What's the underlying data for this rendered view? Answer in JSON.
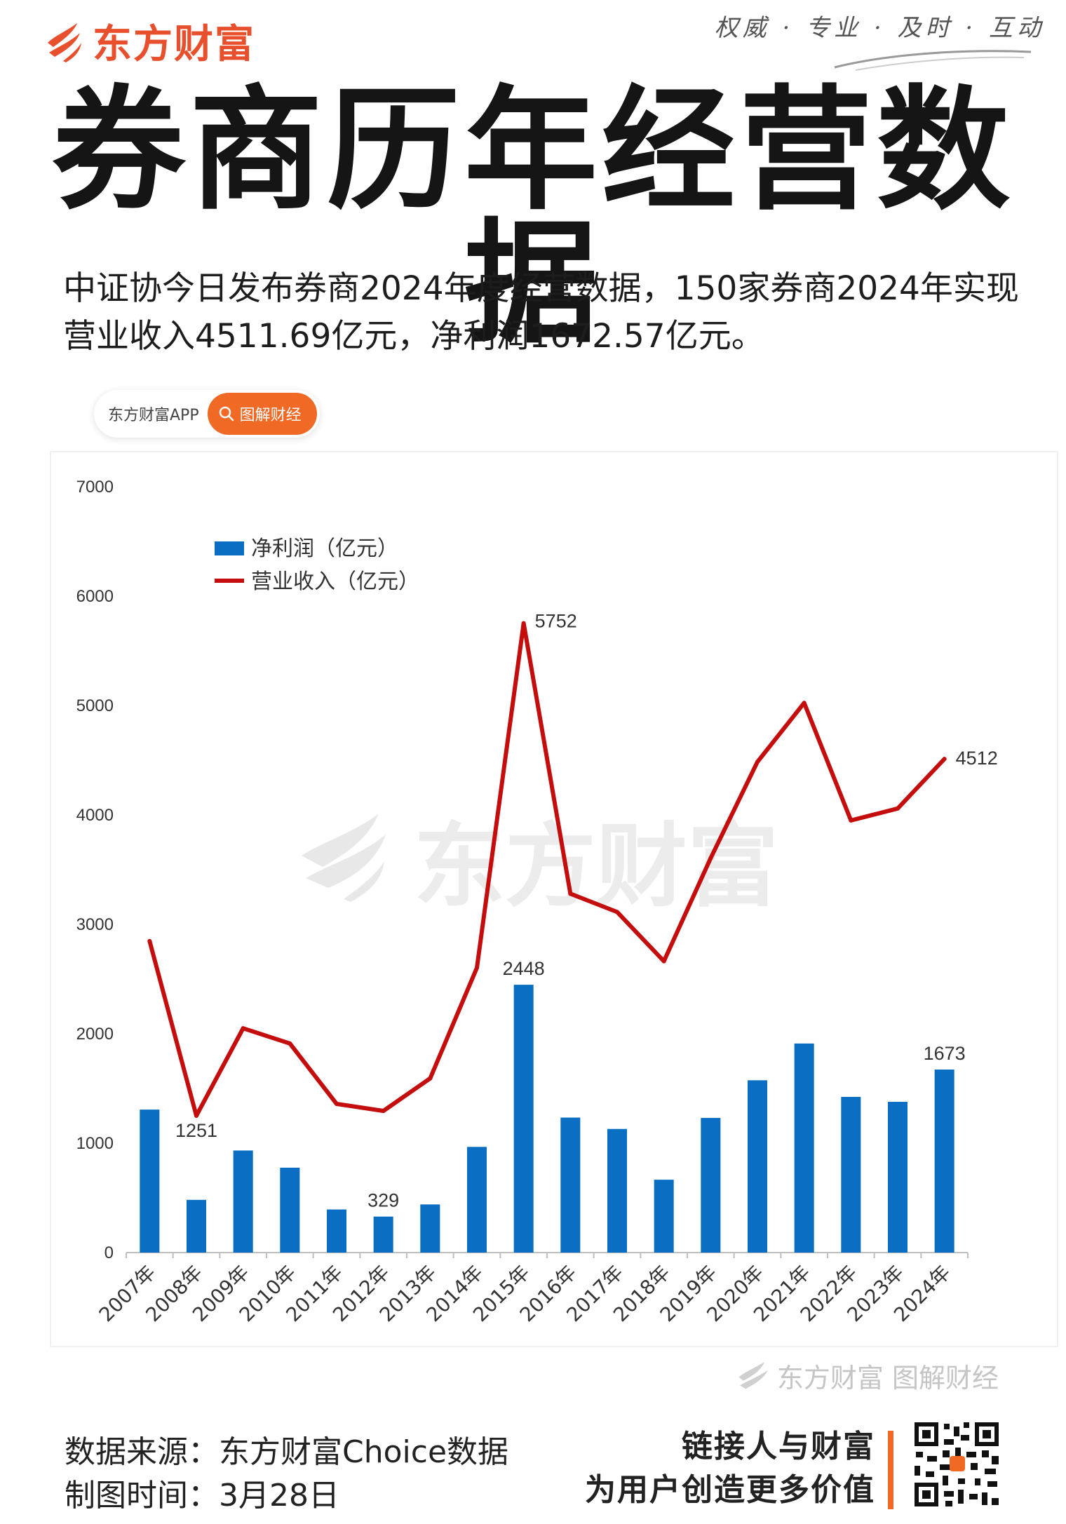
{
  "header": {
    "brand_name": "东方财富",
    "slogan": "权威 · 专业 · 及时 · 互动"
  },
  "title": "券商历年经营数据",
  "summary": "中证协今日发布券商2024年度经营数据，150家券商2024年实现营业收入4511.69亿元，净利润1672.57亿元。",
  "tagbar": {
    "app_label": "东方财富APP",
    "pill_label": "图解财经"
  },
  "watermark": {
    "center": "东方财富",
    "bottom": "东方财富 图解财经"
  },
  "chart_data": {
    "type": "bar",
    "categories": [
      "2007年",
      "2008年",
      "2009年",
      "2010年",
      "2011年",
      "2012年",
      "2013年",
      "2014年",
      "2015年",
      "2016年",
      "2017年",
      "2018年",
      "2019年",
      "2020年",
      "2021年",
      "2022年",
      "2023年",
      "2024年"
    ],
    "series": [
      {
        "name": "净利润（亿元）",
        "type": "bar",
        "color": "#0a6fc2",
        "values": [
          1307,
          482,
          933,
          776,
          394,
          329,
          440,
          966,
          2448,
          1234,
          1130,
          666,
          1231,
          1575,
          1911,
          1423,
          1378,
          1673
        ]
      },
      {
        "name": "营业收入（亿元）",
        "type": "line",
        "color": "#c40d0d",
        "values": [
          2847,
          1251,
          2050,
          1911,
          1359,
          1295,
          1592,
          2603,
          5752,
          3280,
          3113,
          2663,
          3605,
          4485,
          5024,
          3950,
          4059,
          4512
        ]
      }
    ],
    "data_labels": [
      {
        "series": 1,
        "index": 1,
        "text": "1251"
      },
      {
        "series": 0,
        "index": 5,
        "text": "329"
      },
      {
        "series": 0,
        "index": 8,
        "text": "2448"
      },
      {
        "series": 1,
        "index": 8,
        "text": "5752"
      },
      {
        "series": 0,
        "index": 17,
        "text": "1673"
      },
      {
        "series": 1,
        "index": 17,
        "text": "4512"
      }
    ],
    "yticks": [
      "0",
      "1000",
      "2000",
      "3000",
      "4000",
      "5000",
      "6000",
      "7000"
    ],
    "ylim": [
      0,
      7000
    ],
    "title": "",
    "xlabel": "",
    "ylabel": "",
    "grid": false,
    "legend": "top-left"
  },
  "footer": {
    "source_line": "数据来源：东方财富Choice数据",
    "date_line": "制图时间：3月28日",
    "motto_line1": "链接人与财富",
    "motto_line2": "为用户创造更多价值"
  }
}
